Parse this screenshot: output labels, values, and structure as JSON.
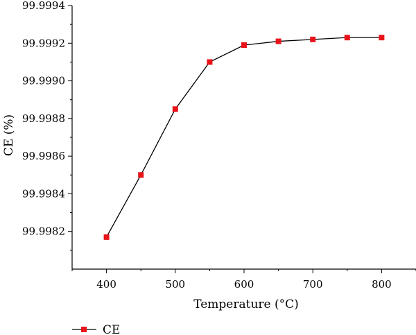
{
  "chart_data": {
    "type": "line",
    "title": "",
    "xlabel": "Temperature (°C)",
    "ylabel": "CE (%)",
    "xlim": [
      350,
      850
    ],
    "ylim": [
      99.998,
      99.9994
    ],
    "x_ticks": [
      400,
      500,
      600,
      700,
      800
    ],
    "y_ticks": [
      99.9982,
      99.9984,
      99.9986,
      99.9988,
      99.999,
      99.9992,
      99.9994
    ],
    "y_tick_labels": [
      "99.9982",
      "99.9984",
      "99.9986",
      "99.9988",
      "99.9990",
      "99.9992",
      "99.9994"
    ],
    "grid": false,
    "legend_position": "bottom-left",
    "series": [
      {
        "name": "CE",
        "color": "#e8141a",
        "line_color": "#000000",
        "marker": "square",
        "x": [
          400,
          450,
          500,
          550,
          600,
          650,
          700,
          750,
          800
        ],
        "y": [
          99.99817,
          99.9985,
          99.99885,
          99.9991,
          99.99919,
          99.99921,
          99.99922,
          99.99923,
          99.99923
        ]
      }
    ]
  }
}
